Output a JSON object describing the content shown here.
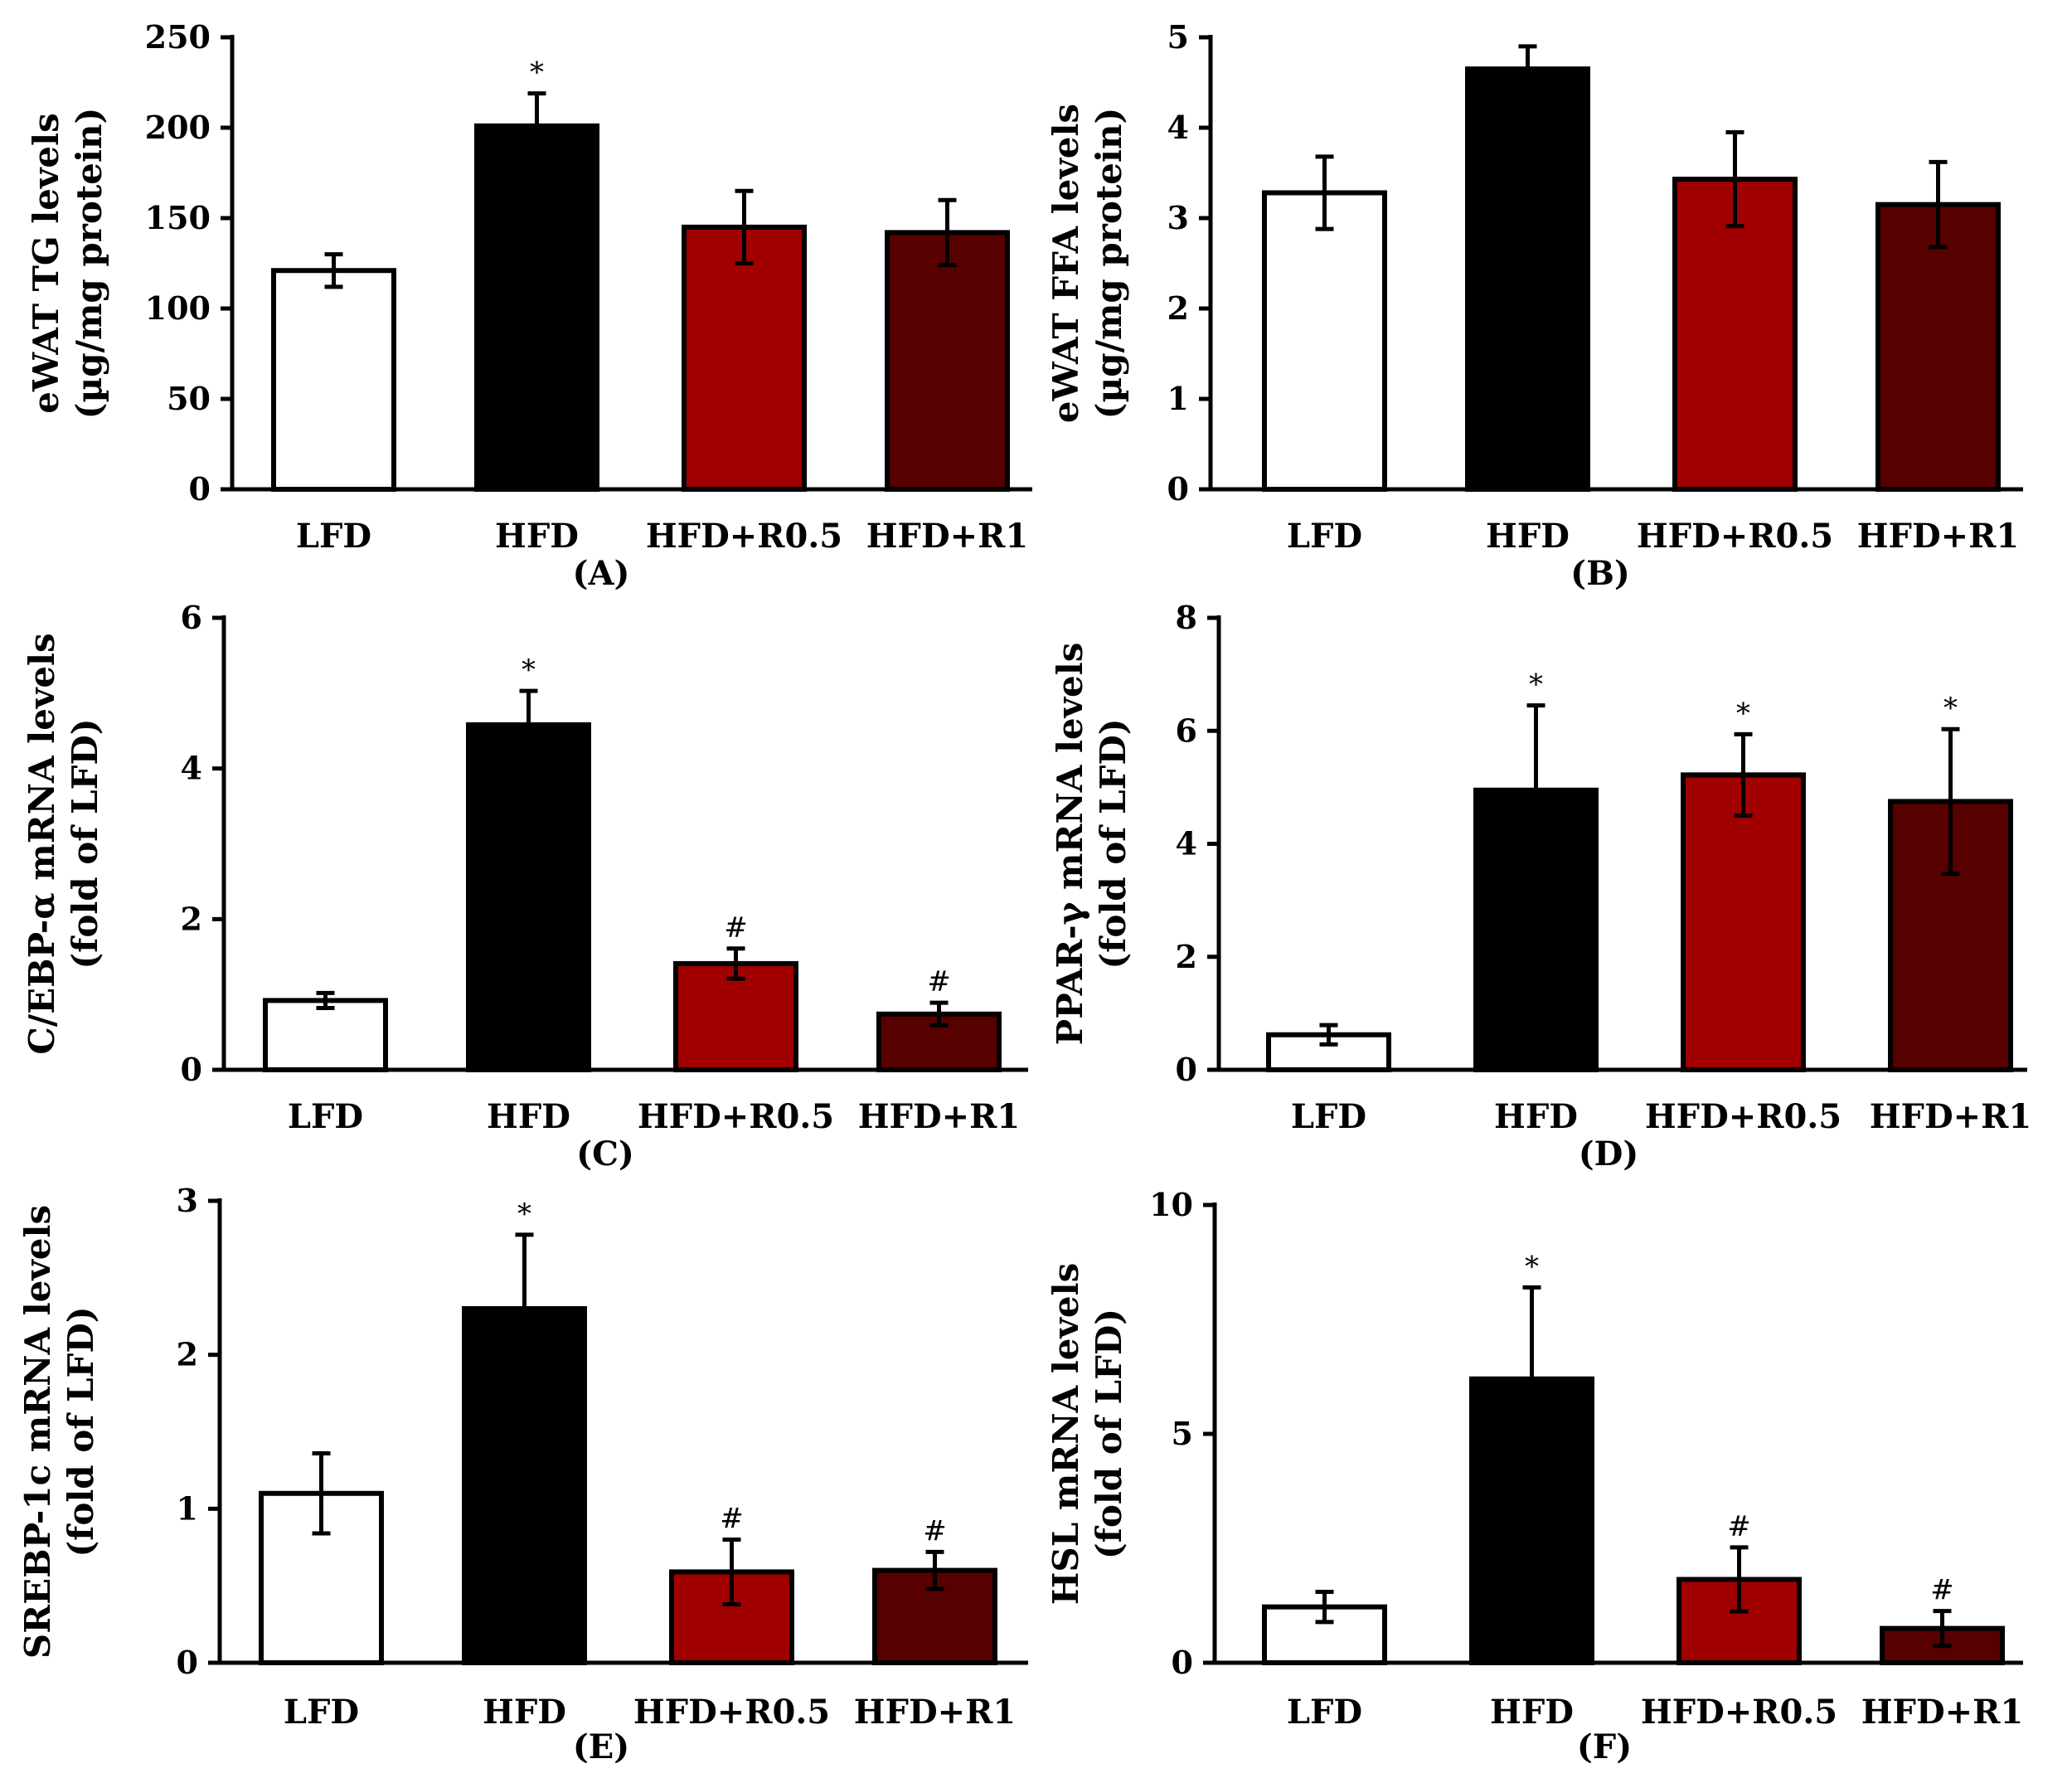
{
  "chart_data": [
    {
      "type": "bar",
      "panel": "(A)",
      "ylabel": [
        "eWAT TG levels",
        "(µg/mg protein)"
      ],
      "categories": [
        "LFD",
        "HFD",
        "HFD+R0.5",
        "HFD+R1"
      ],
      "values": [
        121,
        201,
        145,
        142
      ],
      "errors": [
        9,
        18,
        20,
        18
      ],
      "significance": [
        "",
        "*",
        "",
        ""
      ],
      "ylim": [
        0,
        250
      ],
      "yticks": [
        0,
        50,
        100,
        150,
        200,
        250
      ],
      "colors": [
        "#ffffff",
        "#000000",
        "#a00000",
        "#560000"
      ]
    },
    {
      "type": "bar",
      "panel": "(B)",
      "ylabel": [
        "eWAT FFA levels",
        "(µg/mg protein)"
      ],
      "categories": [
        "LFD",
        "HFD",
        "HFD+R0.5",
        "HFD+R1"
      ],
      "values": [
        3.28,
        4.65,
        3.43,
        3.15
      ],
      "errors": [
        0.4,
        0.25,
        0.52,
        0.47
      ],
      "significance": [
        "",
        "",
        "",
        ""
      ],
      "ylim": [
        0,
        5
      ],
      "yticks": [
        0,
        1,
        2,
        3,
        4,
        5
      ],
      "colors": [
        "#ffffff",
        "#000000",
        "#a00000",
        "#560000"
      ]
    },
    {
      "type": "bar",
      "panel": "(C)",
      "ylabel": [
        "C/EBP-α mRNA levels",
        "(fold of LFD)"
      ],
      "categories": [
        "LFD",
        "HFD",
        "HFD+R0.5",
        "HFD+R1"
      ],
      "values": [
        0.92,
        4.58,
        1.41,
        0.74
      ],
      "errors": [
        0.1,
        0.45,
        0.2,
        0.15
      ],
      "significance": [
        "",
        "*",
        "#",
        "#"
      ],
      "ylim": [
        0,
        6
      ],
      "yticks": [
        0,
        2,
        4,
        6
      ],
      "colors": [
        "#ffffff",
        "#000000",
        "#a00000",
        "#560000"
      ]
    },
    {
      "type": "bar",
      "panel": "(D)",
      "ylabel": [
        "PPAR-γ mRNA levels",
        "(fold of LFD)"
      ],
      "categories": [
        "LFD",
        "HFD",
        "HFD+R0.5",
        "HFD+R1"
      ],
      "values": [
        0.62,
        4.95,
        5.22,
        4.75
      ],
      "errors": [
        0.17,
        1.5,
        0.72,
        1.28
      ],
      "significance": [
        "",
        "*",
        "*",
        "*"
      ],
      "ylim": [
        0,
        8
      ],
      "yticks": [
        0,
        2,
        4,
        6,
        8
      ],
      "colors": [
        "#ffffff",
        "#000000",
        "#a00000",
        "#560000"
      ]
    },
    {
      "type": "bar",
      "panel": "(E)",
      "ylabel": [
        "SREBP-1c mRNA levels",
        "(fold of LFD)"
      ],
      "categories": [
        "LFD",
        "HFD",
        "HFD+R0.5",
        "HFD+R1"
      ],
      "values": [
        1.1,
        2.3,
        0.59,
        0.6
      ],
      "errors": [
        0.26,
        0.48,
        0.21,
        0.12
      ],
      "significance": [
        "",
        "*",
        "#",
        "#"
      ],
      "ylim": [
        0,
        3
      ],
      "yticks": [
        0,
        1,
        2,
        3
      ],
      "colors": [
        "#ffffff",
        "#000000",
        "#a00000",
        "#560000"
      ]
    },
    {
      "type": "bar",
      "panel": "(F)",
      "ylabel": [
        "HSL mRNA levels",
        "(fold of LFD)"
      ],
      "categories": [
        "LFD",
        "HFD",
        "HFD+R0.5",
        "HFD+R1"
      ],
      "values": [
        1.22,
        6.2,
        1.82,
        0.75
      ],
      "errors": [
        0.33,
        2.0,
        0.7,
        0.38
      ],
      "significance": [
        "",
        "*",
        "#",
        "#"
      ],
      "ylim": [
        0,
        10
      ],
      "yticks": [
        0,
        5,
        10
      ],
      "colors": [
        "#ffffff",
        "#000000",
        "#a00000",
        "#560000"
      ]
    }
  ]
}
